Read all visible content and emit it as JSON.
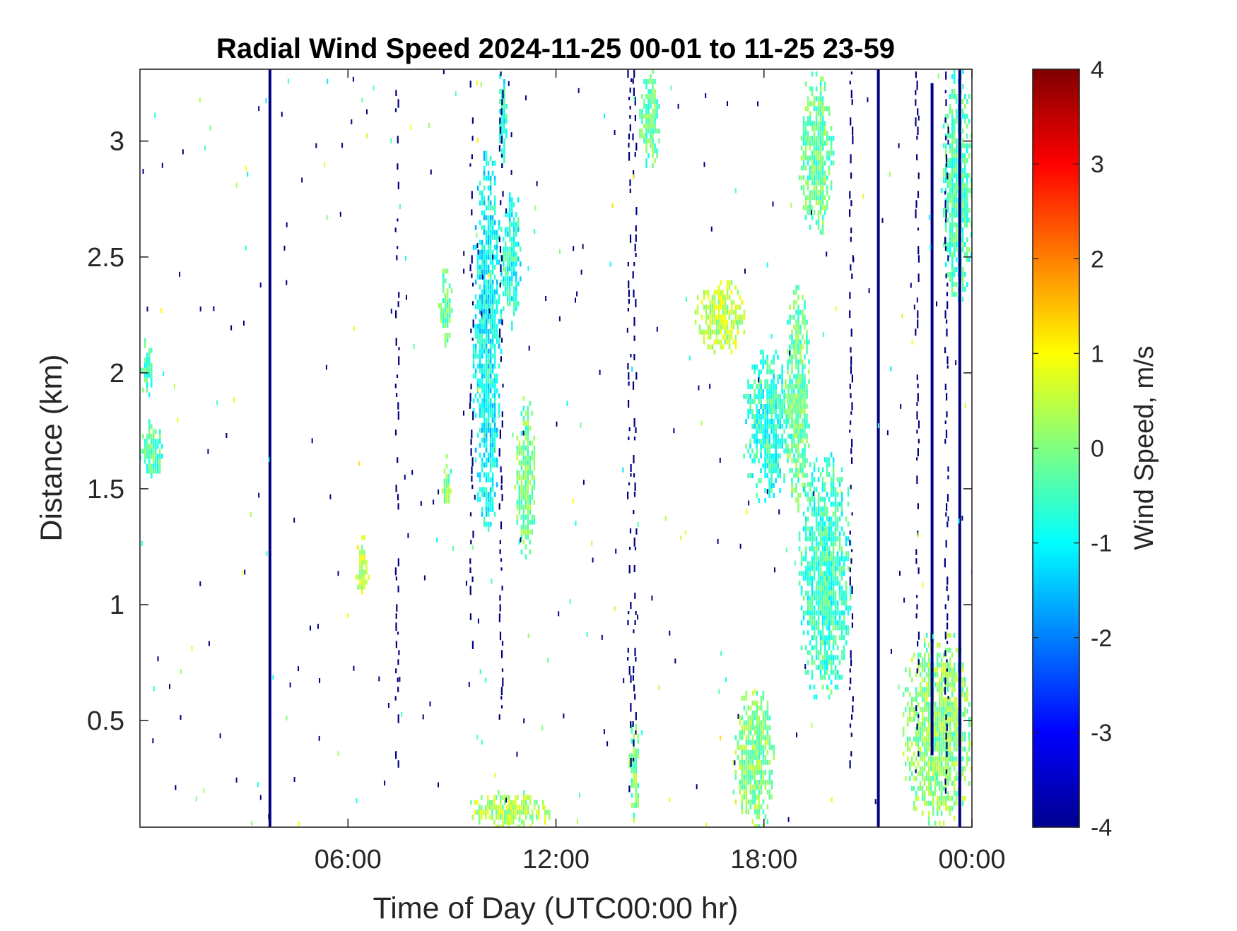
{
  "chart_data": {
    "type": "heatmap",
    "title": "Radial Wind Speed 2024-11-25 00-01 to 11-25 23-59",
    "xlabel": "Time of Day (UTC00:00 hr)",
    "ylabel": "Distance (km)",
    "x_unit": "hours UTC",
    "xlim": [
      0,
      24
    ],
    "ylim": [
      0.04,
      3.31
    ],
    "x_ticks": [
      {
        "value": 6,
        "label": "06:00"
      },
      {
        "value": 12,
        "label": "12:00"
      },
      {
        "value": 18,
        "label": "18:00"
      },
      {
        "value": 24,
        "label": "00:00"
      }
    ],
    "y_ticks": [
      {
        "value": 0.5,
        "label": "0.5"
      },
      {
        "value": 1,
        "label": "1"
      },
      {
        "value": 1.5,
        "label": "1.5"
      },
      {
        "value": 2,
        "label": "2"
      },
      {
        "value": 2.5,
        "label": "2.5"
      },
      {
        "value": 3,
        "label": "3"
      }
    ],
    "colorbar": {
      "label": "Wind Speed, m/s",
      "colormap": "jet",
      "range": [
        -4,
        4
      ],
      "ticks": [
        {
          "value": 4,
          "label": "4"
        },
        {
          "value": 3,
          "label": "3"
        },
        {
          "value": 2,
          "label": "2"
        },
        {
          "value": 1,
          "label": "1"
        },
        {
          "value": 0,
          "label": "0"
        },
        {
          "value": -1,
          "label": "-1"
        },
        {
          "value": -2,
          "label": "-2"
        },
        {
          "value": -3,
          "label": "-3"
        },
        {
          "value": -4,
          "label": "-4"
        }
      ]
    },
    "grid": false,
    "solid_columns": [
      {
        "time": 3.75,
        "ymin": 0.04,
        "ymax": 3.31,
        "speed": -4
      },
      {
        "time": 21.3,
        "ymin": 0.04,
        "ymax": 3.31,
        "speed": -4
      },
      {
        "time": 22.85,
        "ymin": 0.35,
        "ymax": 3.25,
        "speed": -4
      },
      {
        "time": 23.65,
        "ymin": 0.04,
        "ymax": 3.31,
        "speed": -4
      }
    ],
    "dashed_columns": [
      {
        "time": 7.4,
        "ymin": 0.3,
        "ymax": 3.3,
        "speed": -4
      },
      {
        "time": 9.55,
        "ymin": 0.8,
        "ymax": 3.3,
        "speed": -4
      },
      {
        "time": 10.4,
        "ymin": 0.5,
        "ymax": 3.3,
        "speed": -4
      },
      {
        "time": 14.1,
        "ymin": 0.2,
        "ymax": 3.31,
        "speed": -4
      },
      {
        "time": 14.25,
        "ymin": 0.2,
        "ymax": 3.31,
        "speed": -4
      },
      {
        "time": 20.5,
        "ymin": 0.3,
        "ymax": 3.3,
        "speed": -4
      },
      {
        "time": 22.4,
        "ymin": 0.2,
        "ymax": 3.3,
        "speed": -4
      },
      {
        "time": 23.25,
        "ymin": 0.2,
        "ymax": 3.3,
        "speed": -4
      }
    ],
    "regions": [
      {
        "t0": 0.0,
        "t1": 0.7,
        "d0": 1.55,
        "d1": 1.8,
        "speed": -0.4
      },
      {
        "t0": 0.0,
        "t1": 0.4,
        "d0": 1.9,
        "d1": 2.15,
        "speed": -0.5
      },
      {
        "t0": 6.2,
        "t1": 6.6,
        "d0": 1.05,
        "d1": 1.3,
        "speed": 0.6
      },
      {
        "t0": 8.6,
        "t1": 9.0,
        "d0": 2.1,
        "d1": 2.45,
        "speed": -0.2
      },
      {
        "t0": 8.7,
        "t1": 9.0,
        "d0": 1.4,
        "d1": 1.65,
        "speed": 0.0
      },
      {
        "t0": 9.6,
        "t1": 10.4,
        "d0": 1.3,
        "d1": 3.0,
        "speed": -1.0
      },
      {
        "t0": 10.4,
        "t1": 11.0,
        "d0": 2.2,
        "d1": 2.8,
        "speed": -0.8
      },
      {
        "t0": 10.3,
        "t1": 10.55,
        "d0": 2.9,
        "d1": 3.31,
        "speed": -0.8
      },
      {
        "t0": 10.8,
        "t1": 11.4,
        "d0": 1.2,
        "d1": 1.9,
        "speed": -0.1
      },
      {
        "t0": 9.4,
        "t1": 11.8,
        "d0": 0.04,
        "d1": 0.2,
        "speed": 0.3
      },
      {
        "t0": 14.1,
        "t1": 14.4,
        "d0": 0.04,
        "d1": 0.55,
        "speed": 0.0
      },
      {
        "t0": 14.4,
        "t1": 15.0,
        "d0": 2.9,
        "d1": 3.31,
        "speed": -0.3
      },
      {
        "t0": 16.0,
        "t1": 17.5,
        "d0": 2.1,
        "d1": 2.4,
        "speed": 0.5
      },
      {
        "t0": 17.4,
        "t1": 18.8,
        "d0": 1.45,
        "d1": 2.1,
        "speed": -0.7
      },
      {
        "t0": 18.6,
        "t1": 19.3,
        "d0": 1.4,
        "d1": 2.4,
        "speed": -0.2
      },
      {
        "t0": 19.0,
        "t1": 20.5,
        "d0": 0.6,
        "d1": 1.7,
        "speed": -0.6
      },
      {
        "t0": 19.0,
        "t1": 20.0,
        "d0": 2.6,
        "d1": 3.3,
        "speed": -0.2
      },
      {
        "t0": 17.1,
        "t1": 18.3,
        "d0": 0.04,
        "d1": 0.65,
        "speed": 0.0
      },
      {
        "t0": 23.1,
        "t1": 24.0,
        "d0": 2.3,
        "d1": 3.31,
        "speed": -0.4
      },
      {
        "t0": 22.0,
        "t1": 24.0,
        "d0": 0.04,
        "d1": 0.9,
        "speed": 0.1
      }
    ]
  }
}
